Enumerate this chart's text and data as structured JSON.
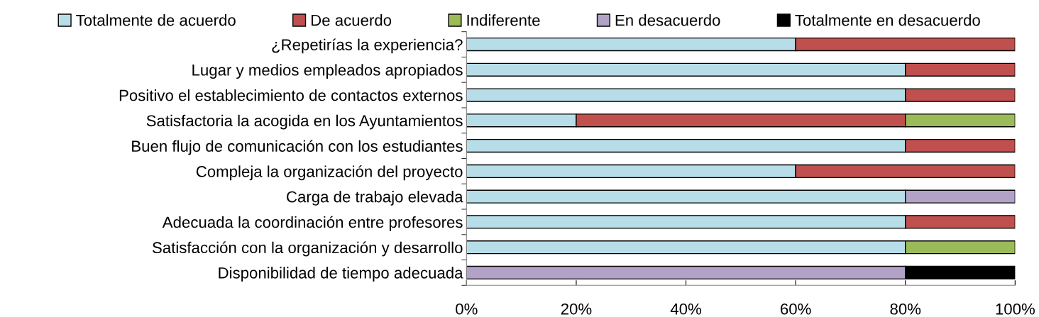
{
  "chart_data": {
    "type": "bar",
    "orientation": "horizontal",
    "stacked": true,
    "legend": "top",
    "grid": false,
    "categories": [
      "¿Repetirías la experiencia?",
      "Lugar y medios empleados apropiados",
      "Positivo el establecimiento de contactos externos",
      "Satisfactoria la acogida en los Ayuntamientos",
      "Buen flujo de comunicación con los estudiantes",
      "Compleja la organización del proyecto",
      "Carga de trabajo elevada",
      "Adecuada la coordinación entre profesores",
      "Satisfacción con la organización y desarrollo",
      "Disponibilidad de tiempo adecuada"
    ],
    "series": [
      {
        "name": "Totalmente de acuerdo",
        "color": "#b7dee8",
        "values": [
          60,
          80,
          80,
          20,
          80,
          60,
          80,
          80,
          80,
          0
        ]
      },
      {
        "name": "De acuerdo",
        "color": "#c0504d",
        "values": [
          40,
          20,
          20,
          60,
          20,
          40,
          0,
          20,
          0,
          0
        ]
      },
      {
        "name": "Indiferente",
        "color": "#9bbb59",
        "values": [
          0,
          0,
          0,
          20,
          0,
          0,
          0,
          0,
          20,
          0
        ]
      },
      {
        "name": "En desacuerdo",
        "color": "#b3a2c7",
        "values": [
          0,
          0,
          0,
          0,
          0,
          0,
          20,
          0,
          0,
          80
        ]
      },
      {
        "name": "Totalmente en desacuerdo",
        "color": "#000000",
        "values": [
          0,
          0,
          0,
          0,
          0,
          0,
          0,
          0,
          0,
          20
        ]
      }
    ],
    "xlim": [
      0,
      100
    ],
    "xticks": [
      {
        "value": 0,
        "label": "0%"
      },
      {
        "value": 20,
        "label": "20%"
      },
      {
        "value": 40,
        "label": "40%"
      },
      {
        "value": 60,
        "label": "60%"
      },
      {
        "value": 80,
        "label": "80%"
      },
      {
        "value": 100,
        "label": "100%"
      }
    ]
  }
}
